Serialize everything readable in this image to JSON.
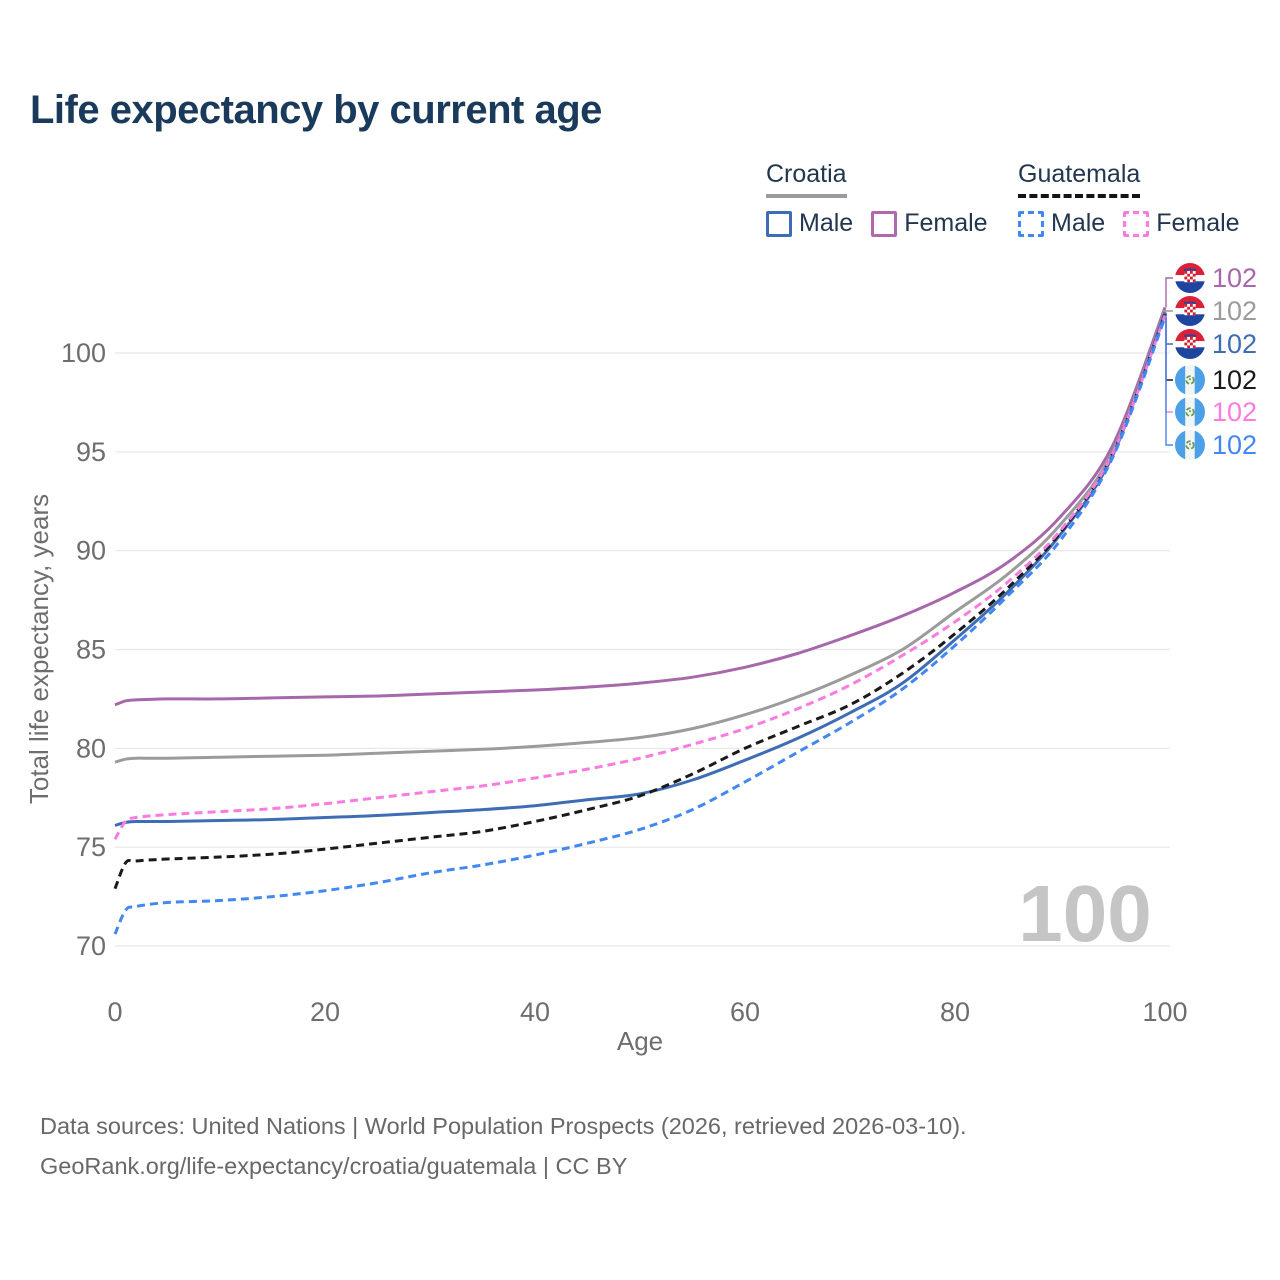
{
  "title": "Life expectancy by current age",
  "legend": {
    "groups": [
      {
        "id": "croatia",
        "label": "Croatia",
        "underline_style": "solid",
        "underline_color": "#9b9b9b",
        "items": [
          {
            "label": "Male",
            "color": "#3e6db5",
            "style": "solid"
          },
          {
            "label": "Female",
            "color": "#b069af",
            "style": "solid"
          }
        ]
      },
      {
        "id": "guatemala",
        "label": "Guatemala",
        "underline_style": "dashed",
        "underline_color": "#141414",
        "items": [
          {
            "label": "Male",
            "color": "#4387f2",
            "style": "dashed"
          },
          {
            "label": "Female",
            "color": "#fb7be0",
            "style": "dashed"
          }
        ]
      }
    ]
  },
  "chart_data": {
    "type": "line",
    "title": "Life expectancy by current age",
    "xlabel": "Age",
    "ylabel": "Total life expectancy, years",
    "x_ticks": [
      0,
      20,
      40,
      60,
      80,
      100
    ],
    "y_ticks": [
      70,
      75,
      80,
      85,
      90,
      95,
      100
    ],
    "xlim": [
      0,
      100
    ],
    "ylim": [
      69.5,
      103
    ],
    "grid": true,
    "legend_position": "top-right",
    "age_counter": "100",
    "ages": [
      0,
      1,
      2,
      5,
      10,
      15,
      20,
      25,
      30,
      35,
      40,
      45,
      50,
      55,
      60,
      65,
      70,
      75,
      80,
      85,
      90,
      95,
      100
    ],
    "series": [
      {
        "id": "croatia-female",
        "name": "Croatia Female",
        "country": "croatia",
        "sex": "Female",
        "color": "#a767ab",
        "dashed": false,
        "end_label": "102",
        "values": [
          82.2,
          82.4,
          82.45,
          82.5,
          82.5,
          82.55,
          82.6,
          82.65,
          82.75,
          82.85,
          82.95,
          83.1,
          83.3,
          83.6,
          84.1,
          84.8,
          85.7,
          86.7,
          87.9,
          89.4,
          91.7,
          95.3,
          102.3
        ]
      },
      {
        "id": "croatia-both",
        "name": "Croatia",
        "country": "croatia",
        "sex": "Both",
        "color": "#9b9b9b",
        "dashed": false,
        "end_label": "102",
        "values": [
          79.3,
          79.45,
          79.5,
          79.5,
          79.55,
          79.6,
          79.65,
          79.75,
          79.85,
          79.95,
          80.1,
          80.3,
          80.55,
          81.0,
          81.7,
          82.6,
          83.7,
          85.0,
          86.9,
          88.8,
          91.3,
          95.0,
          102.15
        ]
      },
      {
        "id": "croatia-male",
        "name": "Croatia Male",
        "country": "croatia",
        "sex": "Male",
        "color": "#3e6db5",
        "dashed": false,
        "end_label": "102",
        "values": [
          76.1,
          76.25,
          76.3,
          76.3,
          76.35,
          76.4,
          76.5,
          76.6,
          76.75,
          76.9,
          77.1,
          77.4,
          77.7,
          78.4,
          79.4,
          80.5,
          81.8,
          83.3,
          85.5,
          87.9,
          90.8,
          94.8,
          102.05
        ]
      },
      {
        "id": "guatemala-both",
        "name": "Guatemala",
        "country": "guatemala",
        "sex": "Both",
        "color": "#1a1a1a",
        "dashed": true,
        "end_label": "102",
        "values": [
          72.9,
          74.2,
          74.3,
          74.4,
          74.5,
          74.65,
          74.9,
          75.2,
          75.5,
          75.8,
          76.3,
          76.9,
          77.6,
          78.7,
          80.0,
          81.1,
          82.2,
          83.8,
          85.8,
          88.1,
          90.9,
          94.9,
          101.95
        ]
      },
      {
        "id": "guatemala-female",
        "name": "Guatemala Female",
        "country": "guatemala",
        "sex": "Female",
        "color": "#fb7be0",
        "dashed": true,
        "end_label": "102",
        "values": [
          75.4,
          76.3,
          76.5,
          76.65,
          76.8,
          76.95,
          77.2,
          77.5,
          77.8,
          78.1,
          78.5,
          78.95,
          79.5,
          80.2,
          81.0,
          82.0,
          83.2,
          84.7,
          86.4,
          88.4,
          91.0,
          94.9,
          101.9
        ]
      },
      {
        "id": "guatemala-male",
        "name": "Guatemala Male",
        "country": "guatemala",
        "sex": "Male",
        "color": "#4387f2",
        "dashed": true,
        "end_label": "102",
        "values": [
          70.6,
          71.8,
          72.0,
          72.2,
          72.3,
          72.5,
          72.8,
          73.2,
          73.7,
          74.1,
          74.6,
          75.2,
          75.9,
          76.9,
          78.3,
          79.8,
          81.3,
          83.0,
          85.2,
          87.7,
          90.5,
          94.7,
          101.8
        ]
      }
    ]
  },
  "footer": {
    "line1": "Data sources: United Nations | World Population Prospects (2026, retrieved 2026-03-10).",
    "line2": "GeoRank.org/life-expectancy/croatia/guatemala | CC BY"
  }
}
